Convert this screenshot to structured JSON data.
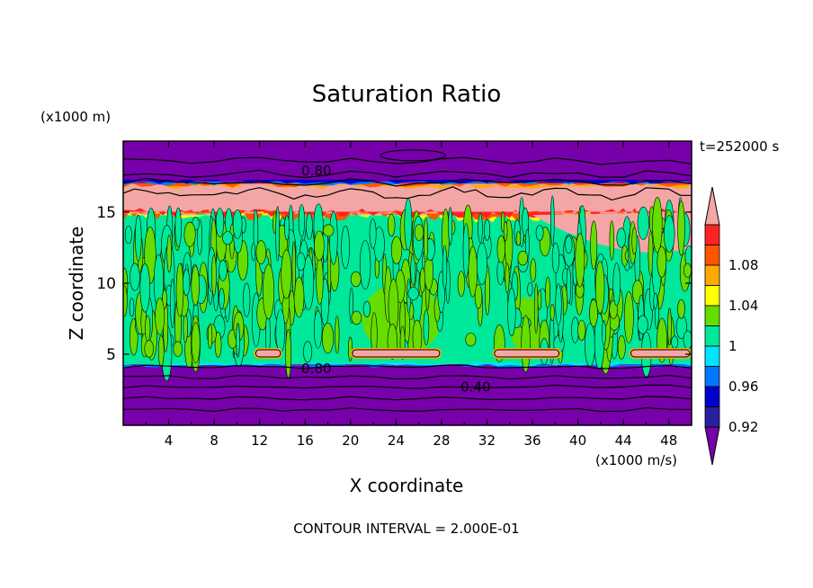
{
  "chart_data": {
    "type": "heatmap",
    "title": "Saturation Ratio",
    "xlabel": "X coordinate",
    "ylabel": "Z coordinate",
    "x_unit_label": "(x1000 m/s)",
    "y_unit_label": "(x1000 m)",
    "time_label": "t=252000 s",
    "footer": "CONTOUR INTERVAL = 2.000E-01",
    "xlim": [
      0,
      50
    ],
    "ylim": [
      0,
      20
    ],
    "x_ticks": [
      4,
      8,
      12,
      16,
      20,
      24,
      28,
      32,
      36,
      40,
      44,
      48
    ],
    "y_ticks": [
      5,
      10,
      15
    ],
    "colorbar": {
      "levels": [
        0.92,
        0.94,
        0.96,
        0.98,
        1,
        1.02,
        1.04,
        1.06,
        1.08
      ],
      "tick_labels": [
        "0.92",
        "0.96",
        "1",
        "1.04",
        "1.08"
      ],
      "colors": [
        "#7700aa",
        "#2a1fa0",
        "#0000cc",
        "#0077ff",
        "#00e5ff",
        "#00e89a",
        "#66dd00",
        "#ffff00",
        "#ffaa00",
        "#ff5500",
        "#ff2222",
        "#f4a6a6"
      ]
    },
    "contour_labels": [
      {
        "text": "0.80",
        "x": 17,
        "z": 17.9
      },
      {
        "text": "0.80",
        "x": 17,
        "z": 4.0
      },
      {
        "text": "0.40",
        "x": 31,
        "z": 2.7
      }
    ],
    "regions": [
      {
        "name": "upper dry layer",
        "z_range": [
          17.0,
          20.0
        ],
        "value": 0.8,
        "level": "below 0.92"
      },
      {
        "name": "upper supersaturated layer",
        "z_range": [
          14.8,
          17.0
        ],
        "value": 1.1,
        "level": "above 1.08"
      },
      {
        "name": "mid cloud layer",
        "z_range": [
          4.3,
          14.8
        ],
        "value": 1.0,
        "level": "0.98 to 1.02"
      },
      {
        "name": "lower dry layer",
        "z_range": [
          0,
          4.3
        ],
        "value": 0.5,
        "level": "below 0.92"
      }
    ],
    "surface_patches": [
      {
        "x_range": [
          11.5,
          14
        ],
        "z": 5.0
      },
      {
        "x_range": [
          20,
          28
        ],
        "z": 5.0
      },
      {
        "x_range": [
          32.5,
          38.5
        ],
        "z": 5.0
      },
      {
        "x_range": [
          44.5,
          50
        ],
        "z": 5.0
      }
    ]
  }
}
